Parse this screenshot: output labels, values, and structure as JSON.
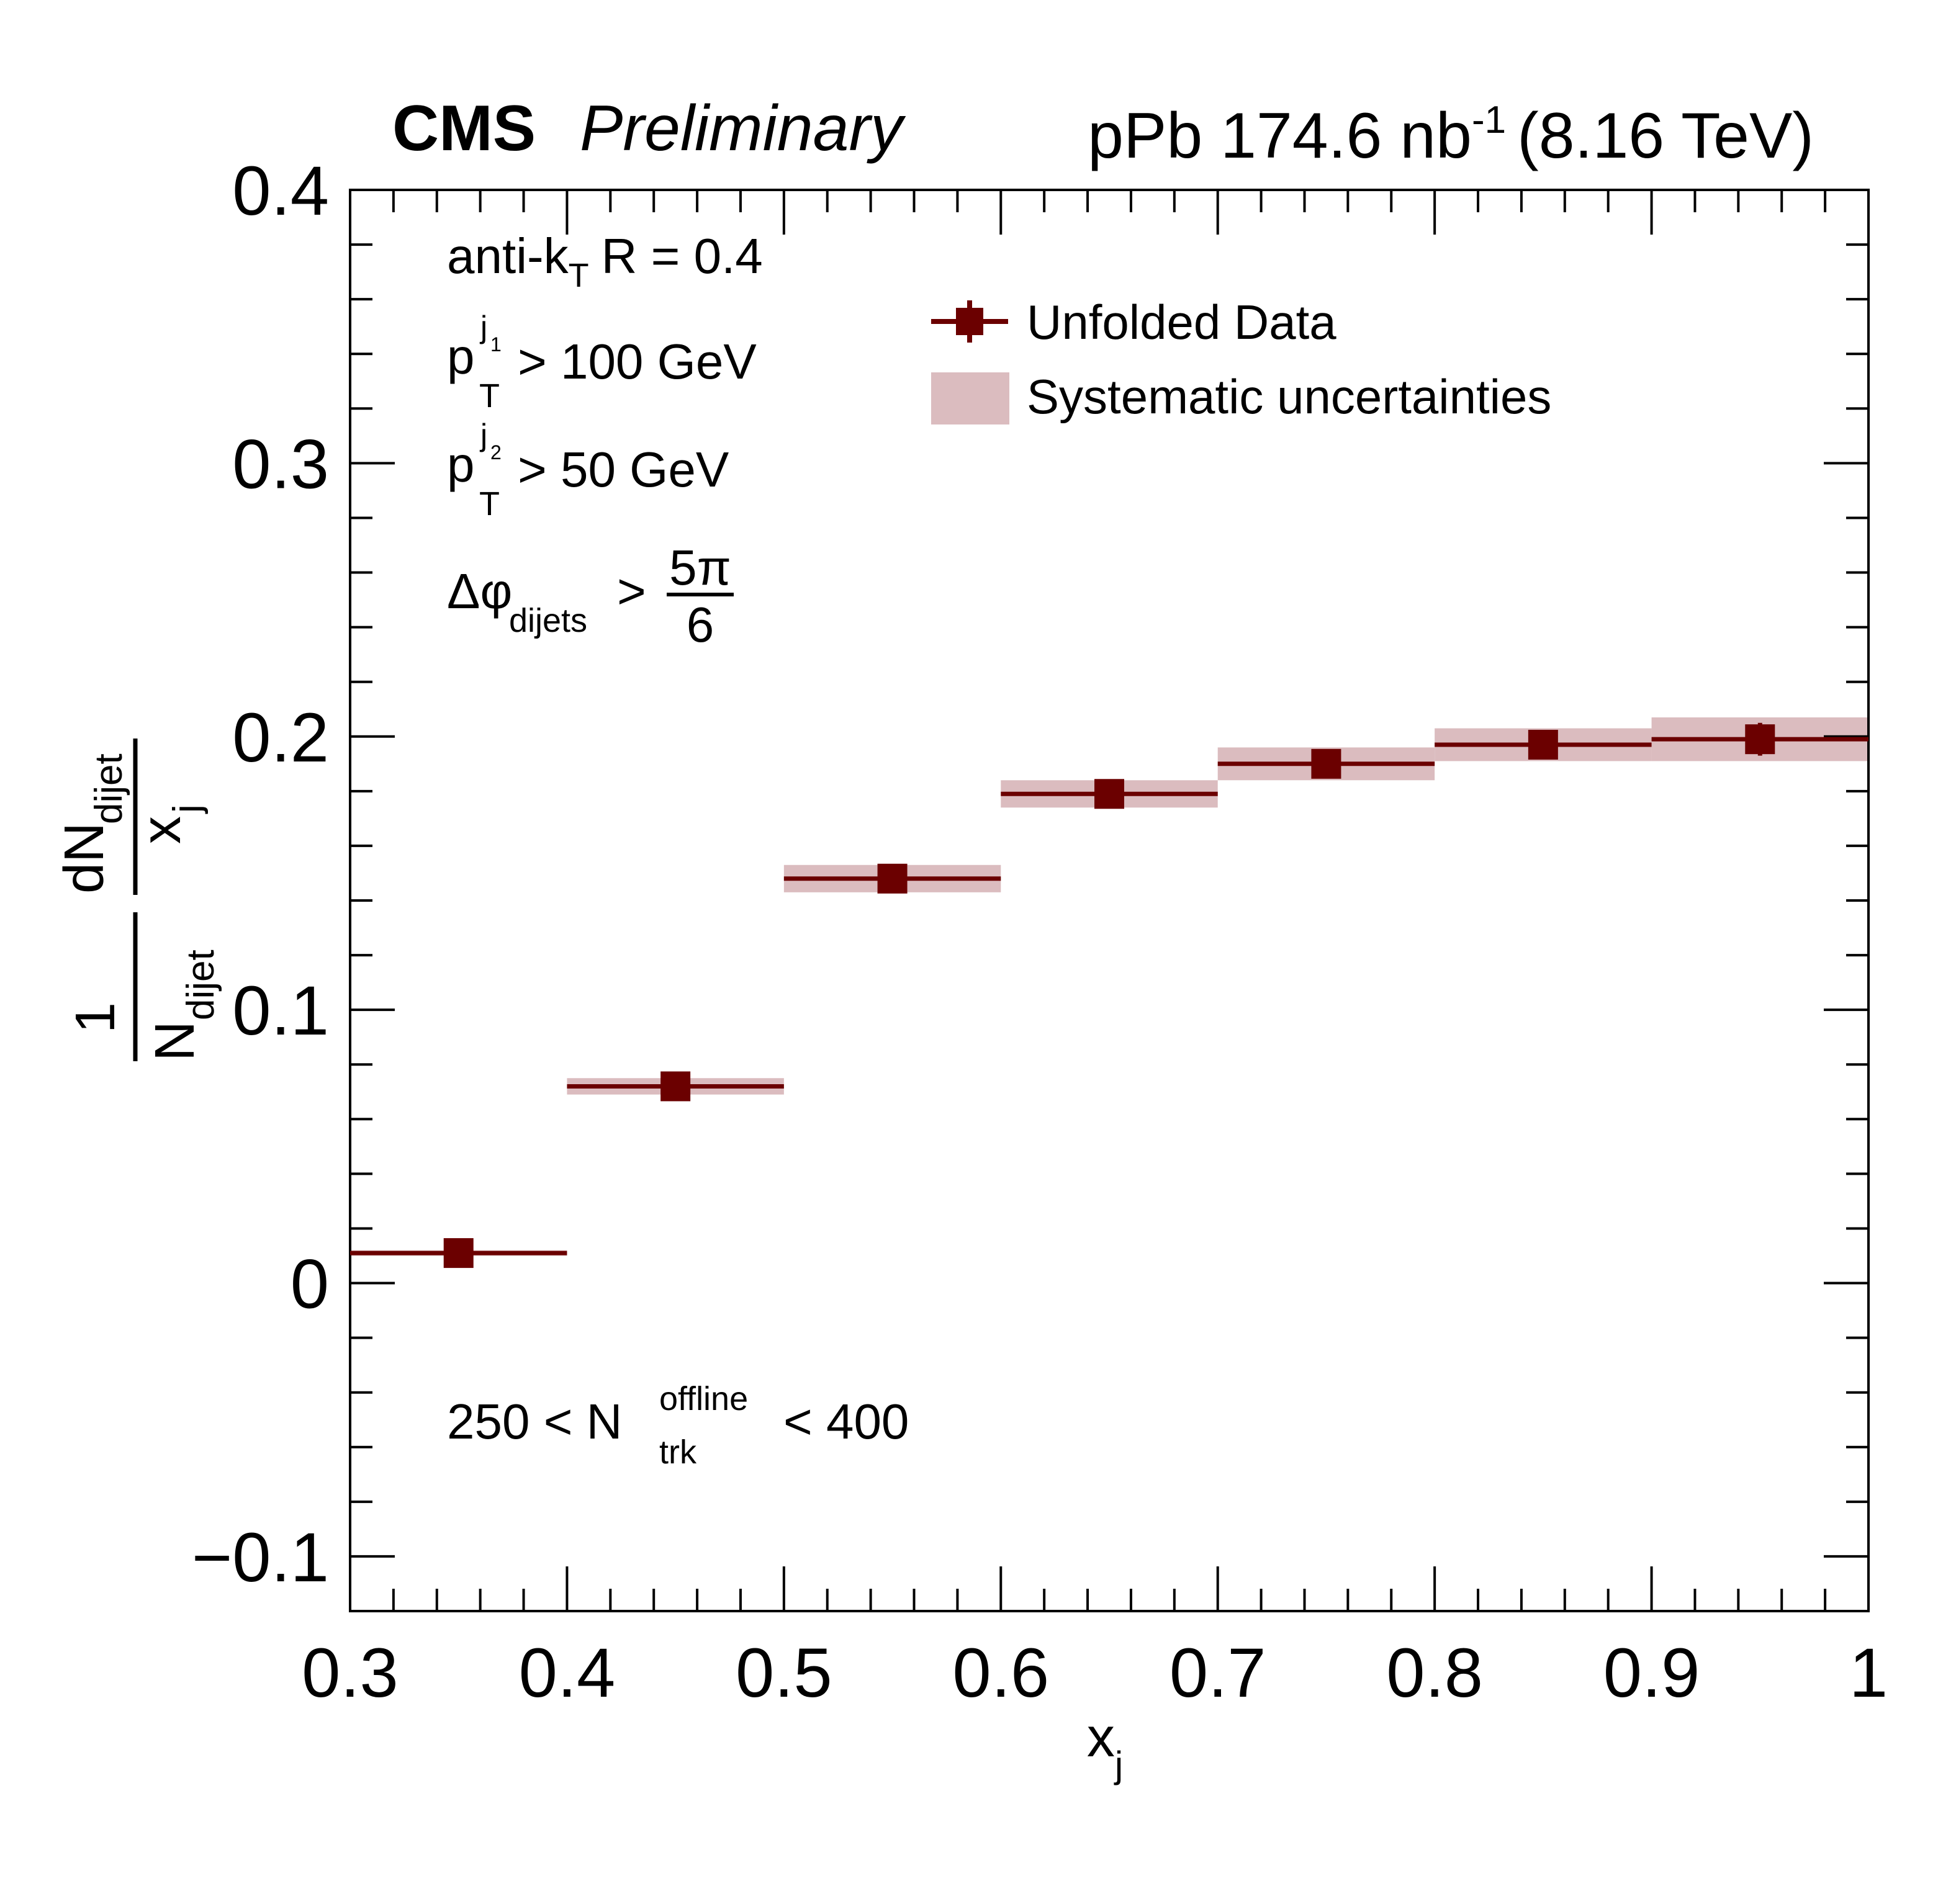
{
  "header": {
    "experiment": "CMS",
    "status": "Preliminary",
    "lumi_prefix": "pPb 174.6 nb",
    "lumi_sup": "-1",
    "lumi_suffix": "(8.16 TeV)"
  },
  "annotations": {
    "algo_prefix": "anti-k",
    "algo_sub": "T",
    "algo_suffix": "R = 0.4",
    "pt1_p": "p",
    "pt1_sub": "T",
    "pt1_sup": "j",
    "pt1_sup_index": "1",
    "pt1_cut": "> 100 GeV",
    "pt2_p": "p",
    "pt2_sub": "T",
    "pt2_sup": "j",
    "pt2_sup_index": "2",
    "pt2_cut": "> 50 GeV",
    "dphi_symbol": "Δφ",
    "dphi_sub": "dijets",
    "dphi_gt": ">",
    "dphi_num": "5π",
    "dphi_den": "6",
    "ntrk_prefix": "250 < N",
    "ntrk_sup": "offline",
    "ntrk_sub": "trk",
    "ntrk_suffix": "< 400"
  },
  "chart_data": {
    "type": "scatter",
    "xlabel": "x",
    "xlabel_sub": "j",
    "ylabel_one": "1",
    "ylabel_N": "N",
    "ylabel_N_sub": "dijet",
    "ylabel_dN": "dN",
    "ylabel_dN_sub": "dijet",
    "ylabel_x": "x",
    "ylabel_x_sub": "j",
    "xlim": [
      0.3,
      1.0
    ],
    "ylim": [
      -0.12,
      0.4
    ],
    "xticks": [
      "0.3",
      "0.4",
      "0.5",
      "0.6",
      "0.7",
      "0.8",
      "0.9",
      "1"
    ],
    "yticks": [
      "−0.1",
      "0",
      "0.1",
      "0.2",
      "0.3",
      "0.4"
    ],
    "grid": false,
    "legend_position": "top-right",
    "legend": {
      "data_label": "Unfolded Data",
      "syst_label": "Systematic uncertainties"
    },
    "colors": {
      "marker": "#6b0000",
      "band": "#dbbcbf"
    },
    "series": [
      {
        "name": "Unfolded Data",
        "bin_low": [
          0.3,
          0.4,
          0.5,
          0.6,
          0.7,
          0.8,
          0.9
        ],
        "bin_high": [
          0.4,
          0.5,
          0.6,
          0.7,
          0.8,
          0.9,
          1.0
        ],
        "x": [
          0.35,
          0.45,
          0.55,
          0.65,
          0.75,
          0.85,
          0.95
        ],
        "y": [
          0.011,
          0.072,
          0.148,
          0.179,
          0.19,
          0.197,
          0.199
        ],
        "stat_err": [
          0.001,
          0.001,
          0.003,
          0.003,
          0.003,
          0.004,
          0.006
        ],
        "syst_err": [
          0.001,
          0.003,
          0.005,
          0.005,
          0.006,
          0.006,
          0.008
        ]
      }
    ]
  }
}
